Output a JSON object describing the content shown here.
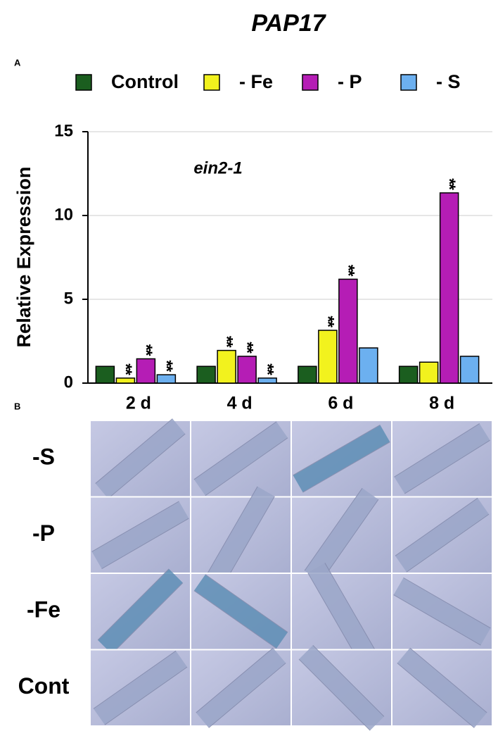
{
  "chart_data": {
    "type": "bar",
    "title": "PAP17",
    "annotation": "ein2-1",
    "ylabel": "Relative Expression",
    "categories": [
      "2 d",
      "4 d",
      "6 d",
      "8 d"
    ],
    "series": [
      {
        "name": "Control",
        "color": "#1b5e1f",
        "values": [
          1.0,
          1.0,
          1.0,
          1.0
        ],
        "significance": [
          null,
          null,
          null,
          null
        ]
      },
      {
        "name": "- Fe",
        "color": "#f2f21e",
        "values": [
          0.3,
          1.95,
          3.15,
          1.25
        ],
        "significance": [
          "**",
          "**",
          "**",
          null
        ]
      },
      {
        "name": "- P",
        "color": "#b51db5",
        "values": [
          1.45,
          1.6,
          6.2,
          11.35
        ],
        "significance": [
          "**",
          "**",
          "**",
          "**"
        ]
      },
      {
        "name": "- S",
        "color": "#6cb0f0",
        "values": [
          0.5,
          0.3,
          2.1,
          1.6
        ],
        "significance": [
          "**",
          "**",
          null,
          null
        ]
      }
    ],
    "ylim": [
      0,
      15
    ],
    "yticks": [
      0,
      5,
      10,
      15
    ],
    "grid": true
  },
  "panel_labels": [
    "A",
    "B"
  ],
  "image_rows": [
    "-S",
    "-P",
    "-Fe",
    "Cont"
  ]
}
